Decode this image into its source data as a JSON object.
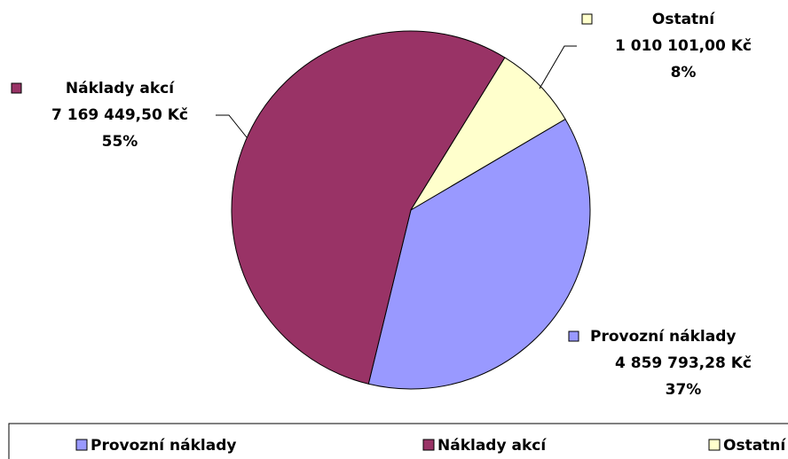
{
  "chart_data": {
    "type": "pie",
    "categories": [
      "Provozní náklady",
      "Náklady akcí",
      "Ostatní"
    ],
    "values": [
      4859793.28,
      7169449.5,
      1010101
    ],
    "value_labels": [
      "4 859 793,28 Kč",
      "7 169 449,50 Kč",
      "1 010 101,00 Kč"
    ],
    "percent_labels": [
      "37%",
      "55%",
      "8%"
    ],
    "colors": [
      "#9999ff",
      "#993366",
      "#ffffcc"
    ],
    "legend": "bottom"
  }
}
